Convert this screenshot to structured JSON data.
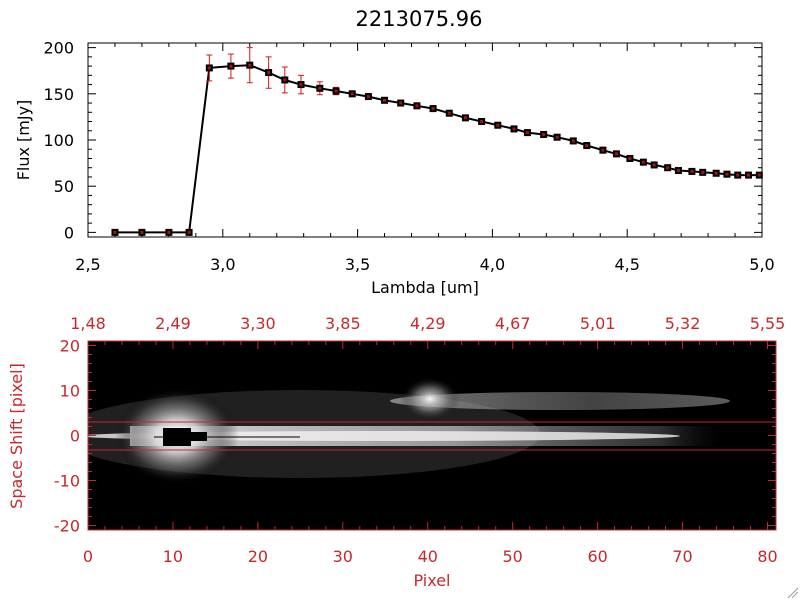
{
  "title": "2213075.96",
  "colors": {
    "axis_black": "#000000",
    "accent_red": "#c8282d",
    "errorbar_red": "#d01818",
    "marker": "#000000",
    "image_background": "#000000"
  },
  "chart_data": [
    {
      "type": "line",
      "title": "2213075.96",
      "xlabel": "Lambda [um]",
      "ylabel": "Flux [mJy]",
      "xlim": [
        2.5,
        5.0
      ],
      "ylim": [
        -5,
        205
      ],
      "xticks": [
        "2.5",
        "3.0",
        "3.5",
        "4.0",
        "4.5",
        "5.0"
      ],
      "yticks": [
        "0",
        "50",
        "100",
        "150",
        "200"
      ],
      "grid": false,
      "series": [
        {
          "marker": "square",
          "x": [
            2.6,
            2.7,
            2.8,
            2.875,
            2.95,
            3.03,
            3.1,
            3.17,
            3.23,
            3.29,
            3.36,
            3.42,
            3.48,
            3.54,
            3.6,
            3.66,
            3.72,
            3.78,
            3.84,
            3.9,
            3.96,
            4.02,
            4.08,
            4.13,
            4.19,
            4.24,
            4.3,
            4.35,
            4.41,
            4.46,
            4.51,
            4.56,
            4.6,
            4.65,
            4.69,
            4.74,
            4.78,
            4.83,
            4.87,
            4.91,
            4.95,
            4.99
          ],
          "y": [
            0,
            0,
            0,
            0,
            178,
            180,
            181,
            173,
            165,
            160,
            156,
            153,
            150,
            147,
            143,
            140,
            137,
            134,
            129,
            124,
            120,
            116,
            112,
            108,
            106,
            103,
            99,
            94,
            89,
            85,
            80,
            76,
            73,
            70,
            67,
            66,
            65,
            64,
            63,
            62,
            62,
            62
          ],
          "yerr": [
            0,
            0,
            0,
            0,
            14,
            13,
            19,
            17,
            14,
            10,
            7,
            4,
            3,
            3,
            3,
            3,
            3,
            3,
            3,
            3,
            3,
            3,
            3,
            3,
            3,
            3,
            3,
            3,
            3,
            3,
            3,
            3,
            3,
            3,
            3,
            3,
            3,
            3,
            3,
            3,
            3,
            3
          ]
        }
      ]
    },
    {
      "type": "heatmap",
      "xlabel": "Pixel",
      "ylabel": "Space Shift [pixel]",
      "xlim": [
        0,
        81
      ],
      "ylim": [
        -21,
        21
      ],
      "xticks": [
        "0",
        "10",
        "20",
        "30",
        "40",
        "50",
        "60",
        "70",
        "80"
      ],
      "yticks": [
        "-20",
        "-10",
        "0",
        "10",
        "20"
      ],
      "top_ticks": [
        "1.48",
        "2.49",
        "3.30",
        "3.85",
        "4.29",
        "4.67",
        "5.01",
        "5.32",
        "5.55"
      ],
      "colormap": "grayscale",
      "extraction_aperture": [
        -3,
        3
      ],
      "features": [
        {
          "kind": "bright-source",
          "x": 10.5,
          "y": 0
        },
        {
          "kind": "saturated-block",
          "x": [
            9,
            12
          ],
          "y": [
            -1,
            1
          ]
        },
        {
          "kind": "spectral-trace",
          "x": [
            5,
            75
          ],
          "y": 0
        },
        {
          "kind": "secondary-blob",
          "x": 40,
          "y": 7
        },
        {
          "kind": "upper-streak",
          "x": [
            40,
            75
          ],
          "y": 7
        }
      ]
    }
  ]
}
